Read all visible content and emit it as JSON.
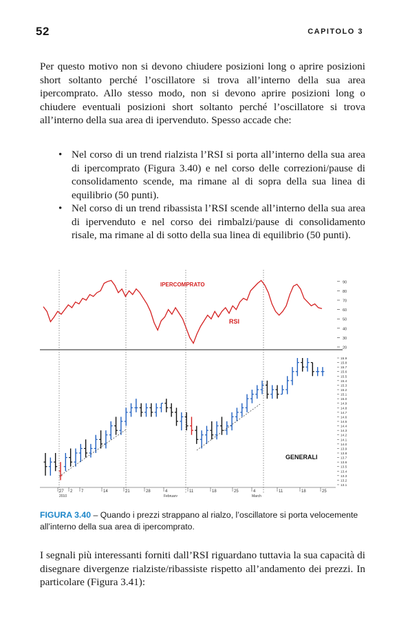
{
  "header": {
    "page_number": "52",
    "chapter": "CAPITOLO 3"
  },
  "paragraphs": {
    "intro": "Per questo motivo non si devono chiudere posizioni long o aprire posizioni short soltanto perché l’oscillatore si trova all’interno della sua area ipercomprato. Allo stesso modo, non si devono aprire posizioni long o chiudere eventuali posizioni short soltanto perché l’oscillatore si trova all’interno della sua area di ipervenduto. Spesso accade che:",
    "outro": "I segnali più interessanti forniti dall’RSI riguardano tuttavia la sua capacità di disegnare divergenze rialziste/ribassiste rispetto all’andamento dei prezzi. In particolare (Figura 3.41):"
  },
  "bullets": [
    "Nel corso di un trend rialzista l’RSI si porta all’interno della sua area di ipercomprato (Figura 3.40) e nel corso delle correzioni/pause di consolidamento scende, ma rimane al di sopra della sua linea di equilibrio (50 punti).",
    "Nel corso di un trend ribassista l’RSI scende all’interno della sua area di ipervenduto e nel corso dei rimbalzi/pause di consolidamento risale, ma rimane al di sotto della sua linea di equilibrio (50 punti)."
  ],
  "bullet_symbol": "•",
  "figure": {
    "label": "FIGURA 3.40",
    "caption": " – Quando i prezzi strappano al rialzo, l’oscillatore si porta velocemente all’interno della sua area di ipercomprato.",
    "label_color": "#1d86c9"
  },
  "chart_data": {
    "type": "line",
    "title": "",
    "annotations": [
      "IPERCOMPRATO",
      "RSI",
      "GENERALI"
    ],
    "colors": {
      "rsi": "#d42020",
      "up_bar": "#2060c0",
      "down_bar": "#111111",
      "red_bar": "#d42020"
    },
    "rsi_axis": {
      "ticks": [
        "90",
        "80",
        "70",
        "60",
        "50",
        "40",
        "30",
        "20"
      ],
      "range": [
        20,
        95
      ]
    },
    "price_axis": {
      "ticks": [
        "15.9",
        "15.8",
        "15.7",
        "15.6",
        "15.5",
        "15.4",
        "15.3",
        "15.2",
        "15.1",
        "15.0",
        "14.9",
        "14.8",
        "14.7",
        "14.6",
        "14.5",
        "14.4",
        "14.3",
        "14.2",
        "14.1",
        "14.0",
        "13.9",
        "13.8",
        "13.7",
        "13.6",
        "13.5",
        "13.4",
        "13.3",
        "13.2",
        "13.1"
      ],
      "range": [
        13.1,
        15.9
      ]
    },
    "date_ticks": [
      "27",
      "2",
      "7",
      "14",
      "21",
      "28",
      "4",
      "11",
      "18",
      "25",
      "4",
      "11",
      "18",
      "25"
    ],
    "month_labels": [
      "2010",
      "February",
      "March"
    ],
    "rsi_series": [
      63,
      58,
      47,
      52,
      58,
      55,
      60,
      65,
      62,
      68,
      66,
      72,
      70,
      76,
      74,
      78,
      80,
      88,
      90,
      91,
      86,
      78,
      82,
      74,
      80,
      76,
      82,
      78,
      72,
      66,
      58,
      46,
      38,
      48,
      52,
      60,
      55,
      62,
      56,
      50,
      40,
      30,
      24,
      34,
      42,
      48,
      54,
      50,
      58,
      52,
      58,
      62,
      56,
      64,
      60,
      68,
      72,
      70,
      80,
      84,
      88,
      91,
      86,
      78,
      66,
      58,
      54,
      58,
      64,
      76,
      85,
      87,
      82,
      72,
      68,
      64,
      66,
      62,
      61
    ],
    "price_bars": [
      {
        "o": 13.6,
        "h": 13.8,
        "l": 13.3,
        "c": 13.5
      },
      {
        "o": 13.5,
        "h": 13.7,
        "l": 13.3,
        "c": 13.6
      },
      {
        "o": 13.6,
        "h": 13.8,
        "l": 13.4,
        "c": 13.5
      },
      {
        "o": 13.4,
        "h": 13.6,
        "l": 13.2,
        "c": 13.3
      },
      {
        "o": 13.5,
        "h": 13.8,
        "l": 13.4,
        "c": 13.7
      },
      {
        "o": 13.7,
        "h": 13.9,
        "l": 13.5,
        "c": 13.6
      },
      {
        "o": 13.6,
        "h": 13.9,
        "l": 13.5,
        "c": 13.8
      },
      {
        "o": 13.8,
        "h": 14.0,
        "l": 13.6,
        "c": 13.9
      },
      {
        "o": 13.9,
        "h": 14.1,
        "l": 13.7,
        "c": 13.8
      },
      {
        "o": 13.8,
        "h": 14.0,
        "l": 13.7,
        "c": 13.9
      },
      {
        "o": 13.9,
        "h": 14.2,
        "l": 13.8,
        "c": 14.1
      },
      {
        "o": 14.1,
        "h": 14.3,
        "l": 13.9,
        "c": 14.0
      },
      {
        "o": 14.0,
        "h": 14.3,
        "l": 13.9,
        "c": 14.2
      },
      {
        "o": 14.2,
        "h": 14.5,
        "l": 14.1,
        "c": 14.4
      },
      {
        "o": 14.4,
        "h": 14.6,
        "l": 14.2,
        "c": 14.3
      },
      {
        "o": 14.3,
        "h": 14.6,
        "l": 14.2,
        "c": 14.5
      },
      {
        "o": 14.5,
        "h": 14.8,
        "l": 14.4,
        "c": 14.7
      },
      {
        "o": 14.7,
        "h": 14.9,
        "l": 14.6,
        "c": 14.8
      },
      {
        "o": 14.8,
        "h": 15.0,
        "l": 14.7,
        "c": 14.8
      },
      {
        "o": 14.8,
        "h": 14.9,
        "l": 14.6,
        "c": 14.7
      },
      {
        "o": 14.7,
        "h": 14.9,
        "l": 14.6,
        "c": 14.8
      },
      {
        "o": 14.8,
        "h": 14.9,
        "l": 14.6,
        "c": 14.7
      },
      {
        "o": 14.7,
        "h": 14.9,
        "l": 14.6,
        "c": 14.8
      },
      {
        "o": 14.8,
        "h": 14.9,
        "l": 14.7,
        "c": 14.9
      },
      {
        "o": 14.9,
        "h": 15.0,
        "l": 14.7,
        "c": 14.8
      },
      {
        "o": 14.8,
        "h": 14.9,
        "l": 14.6,
        "c": 14.7
      },
      {
        "o": 14.7,
        "h": 14.8,
        "l": 14.4,
        "c": 14.5
      },
      {
        "o": 14.5,
        "h": 14.7,
        "l": 14.3,
        "c": 14.6
      },
      {
        "o": 14.6,
        "h": 14.7,
        "l": 14.3,
        "c": 14.4
      },
      {
        "o": 14.4,
        "h": 14.6,
        "l": 14.2,
        "c": 14.3
      },
      {
        "o": 14.3,
        "h": 14.4,
        "l": 14.0,
        "c": 14.1
      },
      {
        "o": 14.1,
        "h": 14.3,
        "l": 13.9,
        "c": 14.2
      },
      {
        "o": 14.2,
        "h": 14.4,
        "l": 14.0,
        "c": 14.3
      },
      {
        "o": 14.3,
        "h": 14.5,
        "l": 14.1,
        "c": 14.2
      },
      {
        "o": 14.2,
        "h": 14.5,
        "l": 14.1,
        "c": 14.4
      },
      {
        "o": 14.4,
        "h": 14.6,
        "l": 14.2,
        "c": 14.3
      },
      {
        "o": 14.3,
        "h": 14.5,
        "l": 14.2,
        "c": 14.4
      },
      {
        "o": 14.4,
        "h": 14.7,
        "l": 14.3,
        "c": 14.6
      },
      {
        "o": 14.6,
        "h": 14.8,
        "l": 14.5,
        "c": 14.7
      },
      {
        "o": 14.7,
        "h": 14.9,
        "l": 14.6,
        "c": 14.8
      },
      {
        "o": 14.8,
        "h": 15.1,
        "l": 14.7,
        "c": 15.0
      },
      {
        "o": 15.0,
        "h": 15.2,
        "l": 14.9,
        "c": 15.1
      },
      {
        "o": 15.1,
        "h": 15.3,
        "l": 15.0,
        "c": 15.2
      },
      {
        "o": 15.2,
        "h": 15.4,
        "l": 15.1,
        "c": 15.3
      },
      {
        "o": 15.3,
        "h": 15.4,
        "l": 15.0,
        "c": 15.1
      },
      {
        "o": 15.1,
        "h": 15.3,
        "l": 15.0,
        "c": 15.2
      },
      {
        "o": 15.2,
        "h": 15.3,
        "l": 15.0,
        "c": 15.1
      },
      {
        "o": 15.1,
        "h": 15.3,
        "l": 15.1,
        "c": 15.2
      },
      {
        "o": 15.2,
        "h": 15.5,
        "l": 15.1,
        "c": 15.4
      },
      {
        "o": 15.4,
        "h": 15.7,
        "l": 15.3,
        "c": 15.6
      },
      {
        "o": 15.6,
        "h": 15.9,
        "l": 15.5,
        "c": 15.8
      },
      {
        "o": 15.8,
        "h": 15.9,
        "l": 15.6,
        "c": 15.7
      },
      {
        "o": 15.7,
        "h": 15.9,
        "l": 15.6,
        "c": 15.8
      },
      {
        "o": 15.8,
        "h": 15.8,
        "l": 15.5,
        "c": 15.6
      },
      {
        "o": 15.6,
        "h": 15.7,
        "l": 15.5,
        "c": 15.6
      },
      {
        "o": 15.6,
        "h": 15.7,
        "l": 15.5,
        "c": 15.6
      }
    ]
  }
}
